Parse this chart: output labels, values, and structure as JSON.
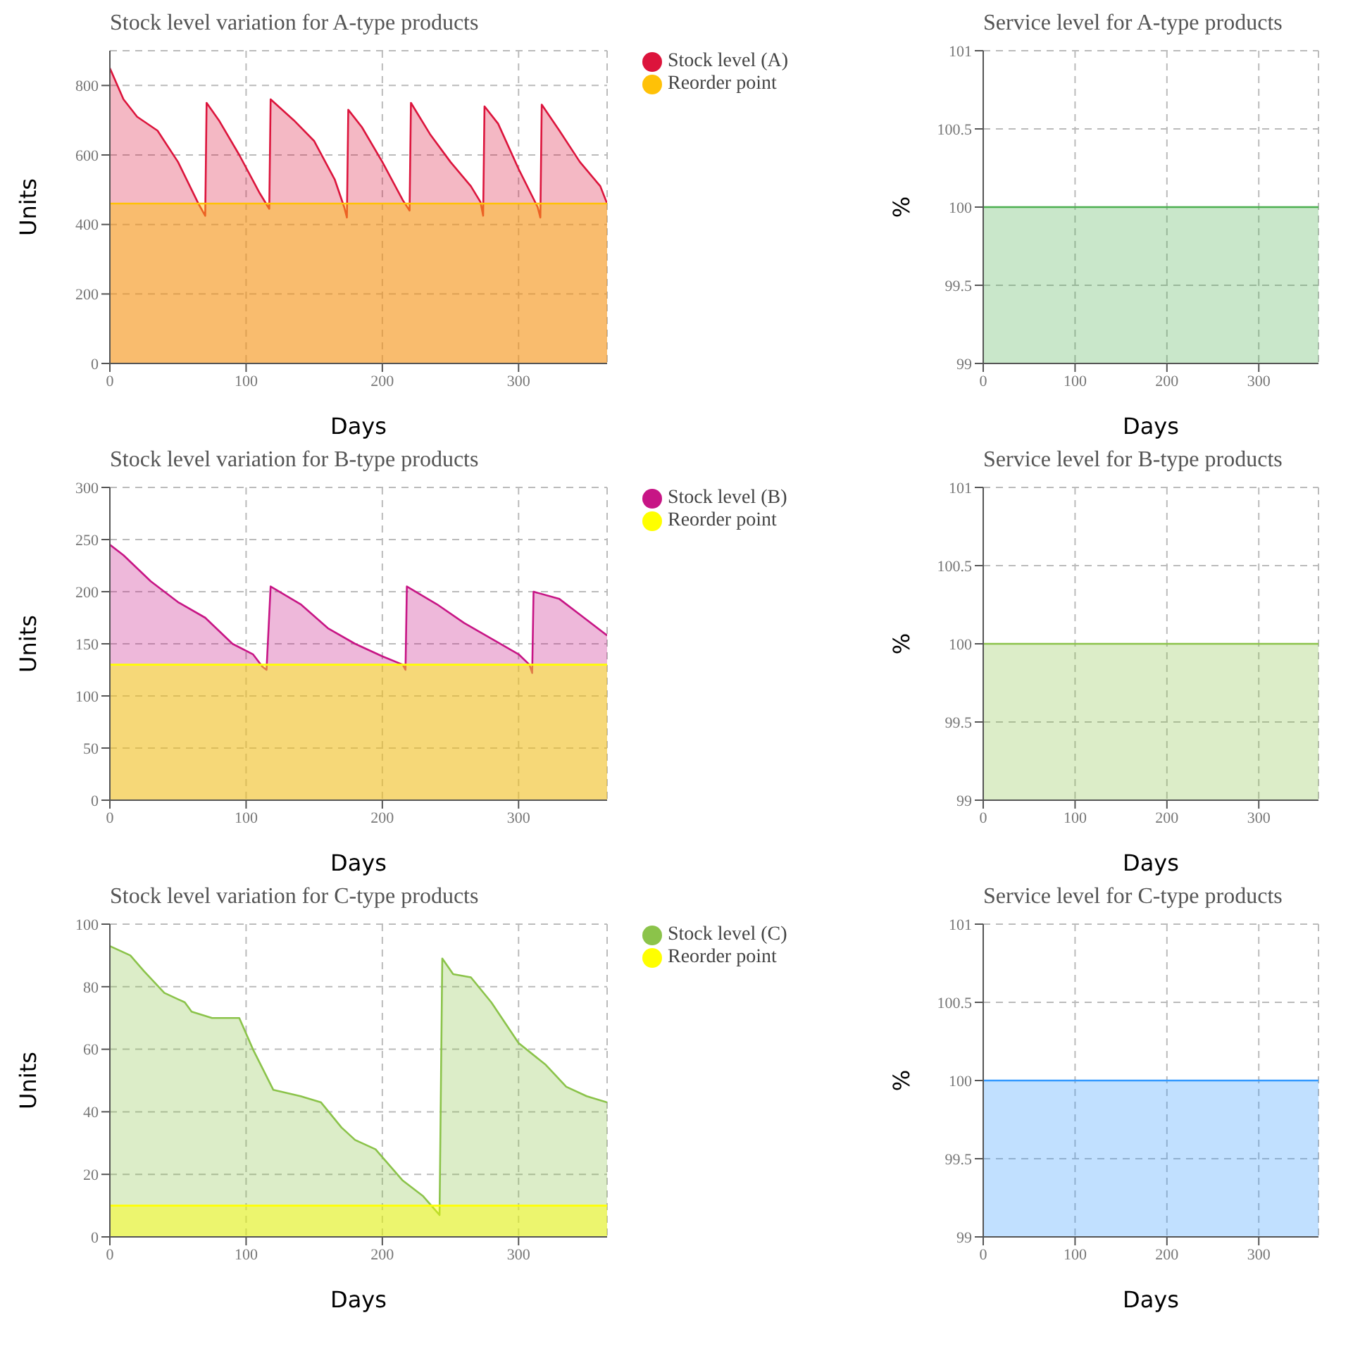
{
  "chart_data": [
    {
      "type": "area",
      "title": "Stock level variation for A-type products",
      "xlabel": "Days",
      "ylabel": "Units",
      "xlim": [
        0,
        365
      ],
      "xticks": [
        0,
        100,
        200,
        300
      ],
      "ylim": [
        0,
        900
      ],
      "yticks": [
        0,
        200,
        400,
        600,
        800
      ],
      "grid": true,
      "legend": "top right",
      "series": [
        {
          "name": "Stock level (A)",
          "color": "#dc143c",
          "x": [
            0,
            10,
            20,
            35,
            50,
            65,
            70,
            71,
            80,
            95,
            110,
            117,
            118,
            135,
            150,
            165,
            172,
            174,
            175,
            185,
            200,
            215,
            220,
            221,
            235,
            250,
            265,
            272,
            274,
            275,
            285,
            300,
            314,
            316,
            317,
            330,
            345,
            360,
            365
          ],
          "values": [
            850,
            760,
            710,
            670,
            580,
            460,
            425,
            750,
            700,
            600,
            490,
            445,
            760,
            700,
            640,
            530,
            450,
            420,
            730,
            680,
            580,
            470,
            440,
            750,
            660,
            580,
            510,
            465,
            425,
            740,
            690,
            560,
            450,
            420,
            745,
            670,
            580,
            510,
            460
          ]
        },
        {
          "name": "Reorder point",
          "color": "#ffc107",
          "x": [
            0,
            365
          ],
          "values": [
            460,
            460
          ]
        }
      ]
    },
    {
      "type": "area",
      "title": "Service level for A-type products",
      "xlabel": "Days",
      "ylabel": "%",
      "xlim": [
        0,
        365
      ],
      "xticks": [
        0,
        100,
        200,
        300
      ],
      "ylim": [
        99,
        101
      ],
      "yticks": [
        99,
        99.5,
        100,
        100.5,
        101
      ],
      "grid": true,
      "series": [
        {
          "color": "#4caf50",
          "x": [
            0,
            365
          ],
          "values": [
            100,
            100
          ]
        }
      ]
    },
    {
      "type": "area",
      "title": "Stock level variation for B-type products",
      "xlabel": "Days",
      "ylabel": "Units",
      "xlim": [
        0,
        365
      ],
      "xticks": [
        0,
        100,
        200,
        300
      ],
      "ylim": [
        0,
        300
      ],
      "yticks": [
        0,
        50,
        100,
        150,
        200,
        250,
        300
      ],
      "grid": true,
      "legend": "top right",
      "series": [
        {
          "name": "Stock level (B)",
          "color": "#c71585",
          "x": [
            0,
            10,
            30,
            50,
            70,
            90,
            105,
            112,
            115,
            118,
            140,
            160,
            180,
            200,
            215,
            217,
            218,
            240,
            260,
            280,
            300,
            308,
            310,
            311,
            330,
            345,
            365
          ],
          "values": [
            245,
            235,
            210,
            190,
            175,
            150,
            140,
            128,
            125,
            205,
            188,
            165,
            150,
            138,
            130,
            125,
            205,
            188,
            170,
            155,
            140,
            130,
            122,
            200,
            193,
            178,
            158
          ]
        },
        {
          "name": "Reorder point",
          "color": "#ffff00",
          "x": [
            0,
            365
          ],
          "values": [
            130,
            130
          ]
        }
      ]
    },
    {
      "type": "area",
      "title": "Service level for B-type products",
      "xlabel": "Days",
      "ylabel": "%",
      "xlim": [
        0,
        365
      ],
      "xticks": [
        0,
        100,
        200,
        300
      ],
      "ylim": [
        99,
        101
      ],
      "yticks": [
        99,
        99.5,
        100,
        100.5,
        101
      ],
      "grid": true,
      "series": [
        {
          "color": "#8bc34a",
          "x": [
            0,
            365
          ],
          "values": [
            100,
            100
          ]
        }
      ]
    },
    {
      "type": "area",
      "title": "Stock level variation for C-type products",
      "xlabel": "Days",
      "ylabel": "Units",
      "xlim": [
        0,
        365
      ],
      "xticks": [
        0,
        100,
        200,
        300
      ],
      "ylim": [
        0,
        100
      ],
      "yticks": [
        0,
        20,
        40,
        60,
        80,
        100
      ],
      "grid": true,
      "legend": "top right",
      "series": [
        {
          "name": "Stock level (C)",
          "color": "#8bc34a",
          "x": [
            0,
            15,
            25,
            40,
            55,
            60,
            75,
            95,
            105,
            120,
            140,
            155,
            170,
            180,
            195,
            205,
            215,
            230,
            242,
            244,
            252,
            265,
            280,
            300,
            320,
            335,
            350,
            365
          ],
          "values": [
            93,
            90,
            85,
            78,
            75,
            72,
            70,
            70,
            60,
            47,
            45,
            43,
            35,
            31,
            28,
            23,
            18,
            13,
            7,
            89,
            84,
            83,
            75,
            62,
            55,
            48,
            45,
            43
          ]
        },
        {
          "name": "Reorder point",
          "color": "#ffff00",
          "x": [
            0,
            365
          ],
          "values": [
            10,
            10
          ]
        }
      ]
    },
    {
      "type": "area",
      "title": "Service level for C-type products",
      "xlabel": "Days",
      "ylabel": "%",
      "xlim": [
        0,
        365
      ],
      "xticks": [
        0,
        100,
        200,
        300
      ],
      "ylim": [
        99,
        101
      ],
      "yticks": [
        99,
        99.5,
        100,
        100.5,
        101
      ],
      "grid": true,
      "series": [
        {
          "color": "#3399ff",
          "x": [
            0,
            365
          ],
          "values": [
            100,
            100
          ]
        }
      ]
    }
  ]
}
